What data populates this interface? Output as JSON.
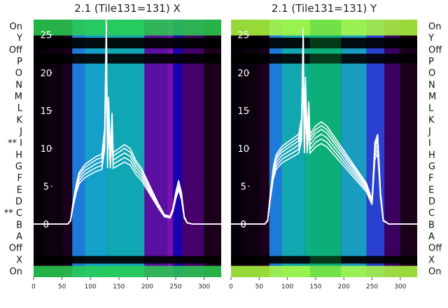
{
  "chart_data": [
    {
      "type": "line",
      "title": "2.1 (Tile131=131) X",
      "xlim": [
        0,
        330
      ],
      "ylim": [
        -7,
        27
      ],
      "xticks": [
        0,
        50,
        100,
        150,
        200,
        250,
        300
      ],
      "yticks": [
        0,
        5,
        10,
        15,
        20,
        25
      ],
      "row_labels": [
        "On",
        "Y",
        "Off",
        "P",
        "O",
        "N",
        "M",
        "L",
        "K",
        "J",
        "I",
        "H",
        "G",
        "F",
        "E",
        "D",
        "C",
        "B",
        "A",
        "Off",
        "X",
        "On"
      ],
      "row_marks": {
        "I": "**",
        "C": "**"
      },
      "series": [
        {
          "x": [
            0,
            60,
            65,
            70,
            75,
            80,
            90,
            100,
            110,
            120,
            125,
            128,
            130,
            132,
            135,
            138,
            140,
            150,
            160,
            170,
            180,
            190,
            200,
            210,
            220,
            230,
            240,
            245,
            250,
            255,
            260,
            265,
            270,
            280,
            300,
            330
          ],
          "y": [
            0,
            0,
            0.5,
            3,
            5,
            6.5,
            7.5,
            8,
            8.5,
            8.8,
            12,
            26,
            9,
            16,
            9,
            14,
            9,
            9.5,
            10,
            9.5,
            8,
            7,
            5.5,
            4,
            2.5,
            1.2,
            1,
            2,
            4,
            5.5,
            4,
            1,
            0.2,
            0,
            0,
            0
          ]
        }
      ]
    },
    {
      "type": "line",
      "title": "2.1 (Tile131=131) Y",
      "xlim": [
        0,
        330
      ],
      "ylim": [
        -7,
        27
      ],
      "xticks": [
        0,
        50,
        100,
        150,
        200,
        250,
        300
      ],
      "yticks": [
        0,
        5,
        10,
        15,
        20,
        25
      ],
      "row_labels": [
        "On",
        "Y",
        "Off",
        "P",
        "O",
        "N",
        "M",
        "L",
        "K",
        "J",
        "I",
        "H",
        "G",
        "F",
        "E",
        "D",
        "C",
        "B",
        "A",
        "Off",
        "X",
        "On"
      ],
      "series": [
        {
          "x": [
            0,
            60,
            65,
            70,
            75,
            80,
            90,
            100,
            110,
            120,
            125,
            128,
            130,
            132,
            135,
            138,
            140,
            150,
            160,
            170,
            180,
            190,
            200,
            210,
            220,
            230,
            240,
            245,
            250,
            255,
            260,
            265,
            270,
            280,
            300,
            330
          ],
          "y": [
            0,
            0,
            0.5,
            4,
            7,
            8.5,
            9.5,
            10,
            10.5,
            11,
            13,
            24,
            11,
            18,
            11,
            15,
            11,
            12,
            12.5,
            12,
            11,
            10,
            9,
            8,
            7,
            6,
            5,
            4,
            3,
            10,
            11,
            4,
            0.5,
            0,
            0,
            0
          ]
        }
      ]
    }
  ]
}
